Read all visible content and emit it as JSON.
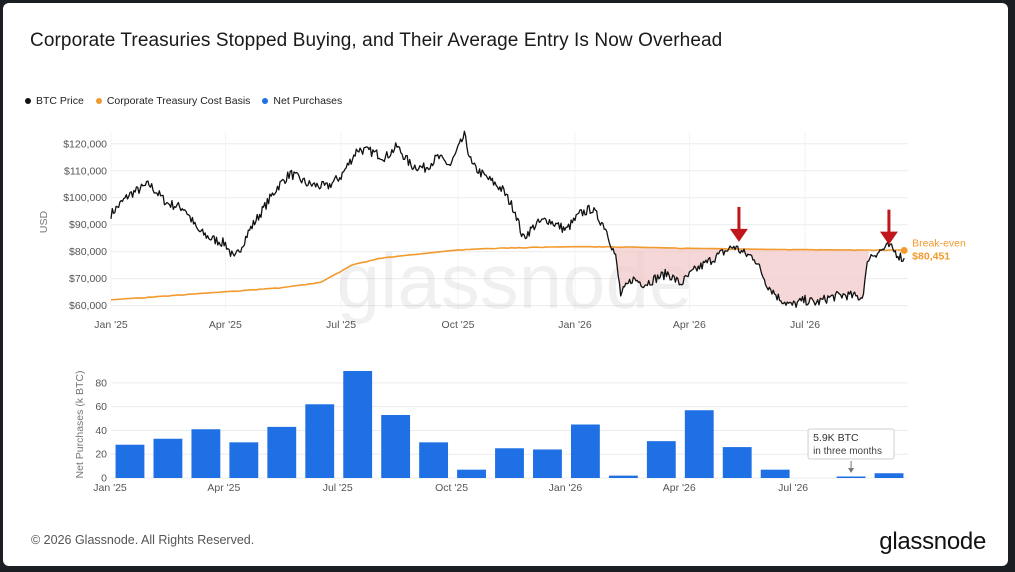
{
  "title": "Corporate Treasuries Stopped Buying, and Their Average Entry Is Now Overhead",
  "footer": "© 2026 Glassnode. All Rights Reserved.",
  "brand": "glassnode",
  "watermark": "glassnode",
  "colors": {
    "btc": "#111111",
    "cost_basis": "#f29a2e",
    "net_purchases": "#1f6fe5",
    "loss_zone": "#f2caca",
    "arrow": "#c0161b"
  },
  "legend": [
    {
      "label": "BTC Price",
      "color": "#111111"
    },
    {
      "label": "Corporate Treasury Cost Basis",
      "color": "#f29a2e"
    },
    {
      "label": "Net Purchases",
      "color": "#1f6fe5"
    }
  ],
  "chart_data": [
    {
      "type": "line",
      "ylabel": "USD",
      "ylim": [
        58000,
        124000
      ],
      "yticks": [
        60000,
        70000,
        80000,
        90000,
        100000,
        110000,
        120000
      ],
      "ytick_labels": [
        "$60,000",
        "$70,000",
        "$80,000",
        "$90,000",
        "$100,000",
        "$110,000",
        "$120,000"
      ],
      "xlim": [
        "2025-01-01",
        "2026-09-20"
      ],
      "xticks": [
        "2025-01-01",
        "2025-04-01",
        "2025-07-01",
        "2025-10-01",
        "2026-01-01",
        "2026-04-01",
        "2026-07-01"
      ],
      "xtick_labels": [
        "Jan '25",
        "Apr '25",
        "Jul '25",
        "Oct '25",
        "Jan '26",
        "Apr '26",
        "Jul '26"
      ],
      "grid": true,
      "series": [
        {
          "name": "BTC Price",
          "x": [
            "2025-01-01",
            "2025-01-15",
            "2025-01-31",
            "2025-02-14",
            "2025-02-28",
            "2025-03-10",
            "2025-03-20",
            "2025-04-01",
            "2025-04-08",
            "2025-04-20",
            "2025-05-01",
            "2025-05-12",
            "2025-05-22",
            "2025-06-05",
            "2025-06-20",
            "2025-07-01",
            "2025-07-14",
            "2025-07-25",
            "2025-08-05",
            "2025-08-14",
            "2025-08-25",
            "2025-09-05",
            "2025-09-15",
            "2025-09-25",
            "2025-10-06",
            "2025-10-12",
            "2025-10-22",
            "2025-11-05",
            "2025-11-15",
            "2025-11-21",
            "2025-12-01",
            "2025-12-10",
            "2025-12-25",
            "2026-01-05",
            "2026-01-14",
            "2026-01-25",
            "2026-02-02",
            "2026-02-06",
            "2026-02-15",
            "2026-02-25",
            "2026-03-05",
            "2026-03-15",
            "2026-03-25",
            "2026-04-05",
            "2026-04-15",
            "2026-04-25",
            "2026-05-06",
            "2026-05-15",
            "2026-05-22",
            "2026-06-01",
            "2026-06-10",
            "2026-06-20",
            "2026-07-01",
            "2026-07-10",
            "2026-07-20",
            "2026-08-01",
            "2026-08-15",
            "2026-08-20",
            "2026-08-28",
            "2026-09-05",
            "2026-09-12",
            "2026-09-17"
          ],
          "values": [
            94000,
            101000,
            105000,
            98000,
            96000,
            88000,
            85000,
            83000,
            77000,
            88000,
            96000,
            104000,
            109000,
            105000,
            104000,
            108000,
            118000,
            117000,
            115000,
            119000,
            112000,
            111000,
            115000,
            112000,
            123000,
            112000,
            108000,
            103000,
            95000,
            85000,
            90000,
            92000,
            88000,
            94000,
            96000,
            89000,
            78000,
            64000,
            70000,
            68000,
            70000,
            72000,
            68000,
            73000,
            76000,
            79000,
            82000,
            79000,
            78000,
            68000,
            63000,
            60000,
            62000,
            61000,
            63000,
            64000,
            63000,
            78000,
            80000,
            82000,
            79000,
            77000
          ]
        },
        {
          "name": "Corporate Treasury Cost Basis",
          "x": [
            "2025-01-01",
            "2025-02-15",
            "2025-04-01",
            "2025-05-15",
            "2025-06-15",
            "2025-07-10",
            "2025-08-01",
            "2025-09-01",
            "2025-10-01",
            "2025-11-01",
            "2025-12-01",
            "2026-01-01",
            "2026-02-01",
            "2026-03-01",
            "2026-04-01",
            "2026-05-01",
            "2026-06-01",
            "2026-07-01",
            "2026-08-01",
            "2026-09-17"
          ],
          "values": [
            62000,
            63500,
            65000,
            66500,
            68500,
            75000,
            77500,
            79000,
            80500,
            81200,
            81500,
            81700,
            81700,
            81400,
            81100,
            80900,
            80700,
            80600,
            80500,
            80451
          ]
        }
      ],
      "annotations": [
        {
          "type": "arrow",
          "x": "2026-05-10",
          "y": 82500
        },
        {
          "type": "arrow",
          "x": "2026-09-05",
          "y": 81500
        },
        {
          "type": "label",
          "x": "2026-09-17",
          "text": "Break-even",
          "value_text": "$80,451"
        }
      ]
    },
    {
      "type": "bar",
      "ylabel": "Net Purchases (k BTC)",
      "ylim": [
        0,
        90
      ],
      "yticks": [
        0,
        20,
        40,
        60,
        80
      ],
      "ytick_labels": [
        "0",
        "20",
        "40",
        "60",
        "80"
      ],
      "xtick_labels": [
        "Jan '25",
        "Apr '25",
        "Jul '25",
        "Oct '25",
        "Jan '26",
        "Apr '26",
        "Jul '26"
      ],
      "categories": [
        "2025-01",
        "2025-02",
        "2025-03",
        "2025-04",
        "2025-05",
        "2025-06",
        "2025-07",
        "2025-08",
        "2025-09",
        "2025-10",
        "2025-11",
        "2025-12",
        "2026-01",
        "2026-02",
        "2026-03",
        "2026-04",
        "2026-05",
        "2026-06",
        "2026-07",
        "2026-08",
        "2026-09"
      ],
      "values": [
        28,
        33,
        41,
        30,
        43,
        62,
        90,
        53,
        30,
        7,
        25,
        24,
        45,
        2,
        31,
        57,
        26,
        7,
        0,
        1,
        4
      ],
      "grid": true,
      "annotation": {
        "title": "5.9K BTC",
        "text": "in three months"
      }
    }
  ]
}
